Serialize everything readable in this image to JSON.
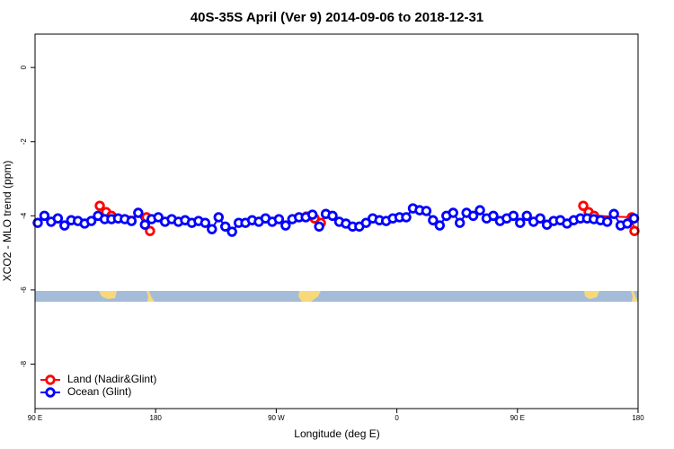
{
  "chart_data": {
    "type": "line",
    "title": "40S-35S April (Ver 9)   2014-09-06 to 2018-12-31",
    "x_label": "Longitude (deg E)",
    "y_label": "XCO2 - MLO trend (ppm)",
    "xlim": [
      90,
      540
    ],
    "ylim": [
      -9.2,
      0.9
    ],
    "xticks": [
      {
        "value": 90,
        "label": "90 E"
      },
      180,
      {
        "value": 270,
        "label": "90 W"
      },
      {
        "value": 360,
        "label": "0"
      },
      {
        "value": 450,
        "label": "90 E"
      },
      {
        "value": 540,
        "label": "180"
      }
    ],
    "yticks": [
      0,
      -2,
      -4,
      -6,
      -8
    ],
    "legend": "bottom-left",
    "series": [
      {
        "name": "Land (Nadir&Glint)",
        "color": "#ff0000",
        "x": [
          138.3,
          143,
          147,
          173.2,
          175.8,
          null,
          292.5,
          298.6,
          303.3,
          null,
          499.1,
          503.1,
          507.2,
          535.3,
          537.3
        ],
        "values": [
          -3.73,
          -3.9,
          -4.0,
          -4.04,
          -4.41,
          null,
          -4.02,
          -4.07,
          -4.19,
          null,
          -3.73,
          -3.9,
          -4.0,
          -4.04,
          -4.41
        ]
      },
      {
        "name": "Ocean (Glint)",
        "color": "#0000ff",
        "x": [
          92,
          97,
          102,
          107,
          112,
          117,
          122,
          127,
          132,
          137,
          142,
          147,
          152,
          157,
          162,
          167,
          172,
          177,
          182,
          187,
          192,
          197,
          202,
          207,
          212,
          217,
          222,
          227,
          232,
          237,
          242,
          247,
          252,
          257,
          262,
          267,
          272,
          277,
          282,
          287,
          292,
          297,
          302,
          307,
          312,
          317,
          322,
          327,
          332,
          337,
          342,
          347,
          352,
          357,
          362,
          367,
          372,
          377,
          382,
          387,
          392,
          397,
          402,
          407,
          412,
          417,
          422,
          427,
          432,
          437,
          442,
          447,
          452,
          457,
          462,
          467,
          472,
          477,
          482,
          487,
          492,
          497,
          502,
          507,
          512,
          517,
          522,
          527,
          532,
          537
        ],
        "values": [
          -4.19,
          -4.0,
          -4.16,
          -4.07,
          -4.26,
          -4.12,
          -4.14,
          -4.21,
          -4.14,
          -4.0,
          -4.09,
          -4.09,
          -4.07,
          -4.09,
          -4.14,
          -3.92,
          -4.24,
          -4.09,
          -4.04,
          -4.16,
          -4.09,
          -4.16,
          -4.12,
          -4.19,
          -4.14,
          -4.19,
          -4.36,
          -4.04,
          -4.29,
          -4.43,
          -4.19,
          -4.19,
          -4.12,
          -4.16,
          -4.07,
          -4.16,
          -4.09,
          -4.26,
          -4.09,
          -4.04,
          -4.04,
          -3.97,
          -4.29,
          -3.95,
          -4.0,
          -4.16,
          -4.21,
          -4.29,
          -4.29,
          -4.19,
          -4.07,
          -4.12,
          -4.14,
          -4.07,
          -4.04,
          -4.04,
          -3.8,
          -3.85,
          -3.87,
          -4.12,
          -4.26,
          -4.0,
          -3.92,
          -4.19,
          -3.92,
          -4.0,
          -3.85,
          -4.07,
          -4.0,
          -4.14,
          -4.07,
          -4.0,
          -4.19,
          -4.0,
          -4.16,
          -4.07,
          -4.24,
          -4.14,
          -4.12,
          -4.21,
          -4.12,
          -4.07,
          -4.07,
          -4.09,
          -4.12,
          -4.16,
          -3.95,
          -4.26,
          -4.21,
          -4.07
        ]
      }
    ]
  }
}
